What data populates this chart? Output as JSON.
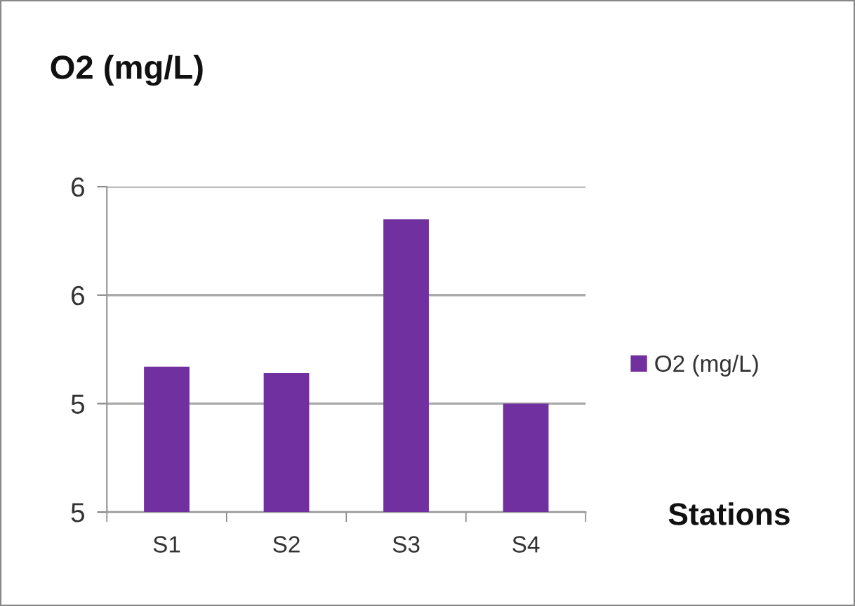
{
  "chart_data": {
    "type": "bar",
    "title": "O2 (mg/L)",
    "xlabel": "Stations",
    "categories": [
      "S1",
      "S2",
      "S3",
      "S4"
    ],
    "series": [
      {
        "name": "O2 (mg/L)",
        "color": "#7030a0",
        "values": [
          5.17,
          5.14,
          5.85,
          5.0
        ]
      }
    ],
    "ylim": [
      4.5,
      6.0
    ],
    "yticks": [
      {
        "value": 4.5,
        "label": "5"
      },
      {
        "value": 5.0,
        "label": "5"
      },
      {
        "value": 5.5,
        "label": "6"
      },
      {
        "value": 6.0,
        "label": "6"
      }
    ],
    "grid": "y",
    "legend": "right"
  }
}
